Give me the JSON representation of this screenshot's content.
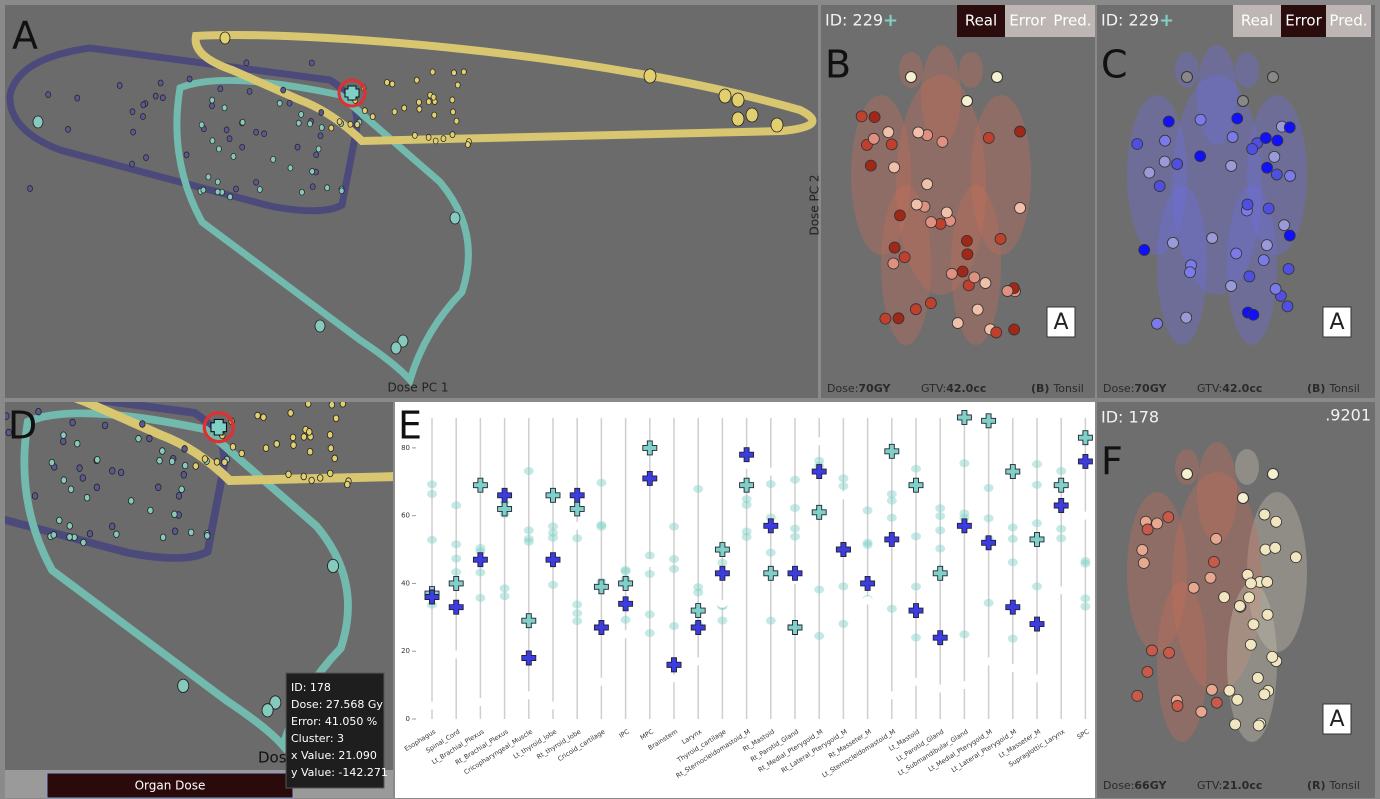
{
  "panel_a": {
    "label": "A",
    "x_axis": "Dose PC 1",
    "y_axis": "Dose PC 2"
  },
  "panel_b": {
    "label": "B",
    "id": "ID: 229",
    "plus": "+",
    "tabs": [
      "Real",
      "Error",
      "Pred."
    ],
    "active_tab": 0,
    "cube": "A",
    "dose_label": "Dose:",
    "dose": "70GY",
    "gtv_label": "GTV:",
    "gtv": "42.0cc",
    "side": "(B)",
    "site": "Tonsil"
  },
  "panel_c": {
    "label": "C",
    "id": "ID: 229",
    "plus": "+",
    "tabs": [
      "Real",
      "Error",
      "Pred."
    ],
    "active_tab": 1,
    "cube": "A",
    "dose_label": "Dose:",
    "dose": "70GY",
    "gtv_label": "GTV:",
    "gtv": "42.0cc",
    "side": "(B)",
    "site": "Tonsil"
  },
  "panel_d": {
    "label": "D",
    "tooltip": [
      "ID: 178",
      "Dose: 27.568 Gy",
      "Error: 41.050 %",
      "Cluster: 3",
      "x Value: 21.090",
      "y Value: -142.271"
    ],
    "button": "Organ Dose",
    "axis_fragment": "Dose"
  },
  "panel_e": {
    "label": "E"
  },
  "panel_f": {
    "label": "F",
    "id": "ID: 178",
    "score": ".9201",
    "cube": "A",
    "dose_label": "Dose:",
    "dose": "66GY",
    "gtv_label": "GTV:",
    "gtv": "21.0cc",
    "side": "(R)",
    "site": "Tonsil"
  },
  "chart_data": {
    "type": "dot",
    "categories": [
      "Esophagus",
      "Spinal_Cord",
      "Lt_Brachial_Plexus",
      "Rt_Brachial_Plexus",
      "Cricopharyngeal_Muscle",
      "Lt_thyroid_lobe",
      "Rt_thyroid_lobe",
      "Cricoid_cartilage",
      "IPC",
      "MPC",
      "Brainstem",
      "Larynx",
      "Thyroid_cartilage",
      "Rt_Sternocleidomastoid_M",
      "Rt_Mastoid",
      "Rt_Parotid_Gland",
      "Rt_Medial_Pterygoid_M",
      "Rt_Lateral_Pterygoid_M",
      "Rt_Masseter_M",
      "Lt_Sternocleidomastoid_M",
      "Lt_Mastoid",
      "Lt_Parotid_Gland",
      "Lt_Submandibular_Gland",
      "Lt_Medial_Pterygoid_M",
      "Lt_Lateral_Pterygoid_M",
      "Lt_Masseter_M",
      "Supraglottic_Larynx",
      "SPC"
    ],
    "series": [
      {
        "color": "#ffffff",
        "marker": "dot",
        "values": [
          4,
          19,
          5,
          65,
          7,
          4,
          57,
          11,
          25,
          46,
          12,
          17,
          34,
          75,
          73,
          41,
          82,
          66,
          35,
          7,
          11,
          9,
          10,
          17,
          15,
          12,
          38,
          60
        ]
      },
      {
        "color": "#7fd0c6",
        "marker": "cross",
        "values": [
          37,
          40,
          69,
          62,
          29,
          66,
          62,
          39,
          40,
          80,
          16,
          32,
          50,
          69,
          43,
          27,
          61,
          50,
          null,
          79,
          69,
          43,
          89,
          88,
          73,
          53,
          69,
          83
        ]
      },
      {
        "color": "#3c3ce0",
        "marker": "cross",
        "values": [
          36,
          33,
          47,
          66,
          18,
          47,
          66,
          27,
          34,
          71,
          16,
          27,
          43,
          78,
          57,
          43,
          73,
          50,
          40,
          53,
          32,
          24,
          57,
          52,
          33,
          28,
          63,
          76
        ]
      }
    ],
    "ylim": [
      0,
      90
    ],
    "yticks": [
      0,
      20,
      40,
      60,
      80
    ]
  }
}
